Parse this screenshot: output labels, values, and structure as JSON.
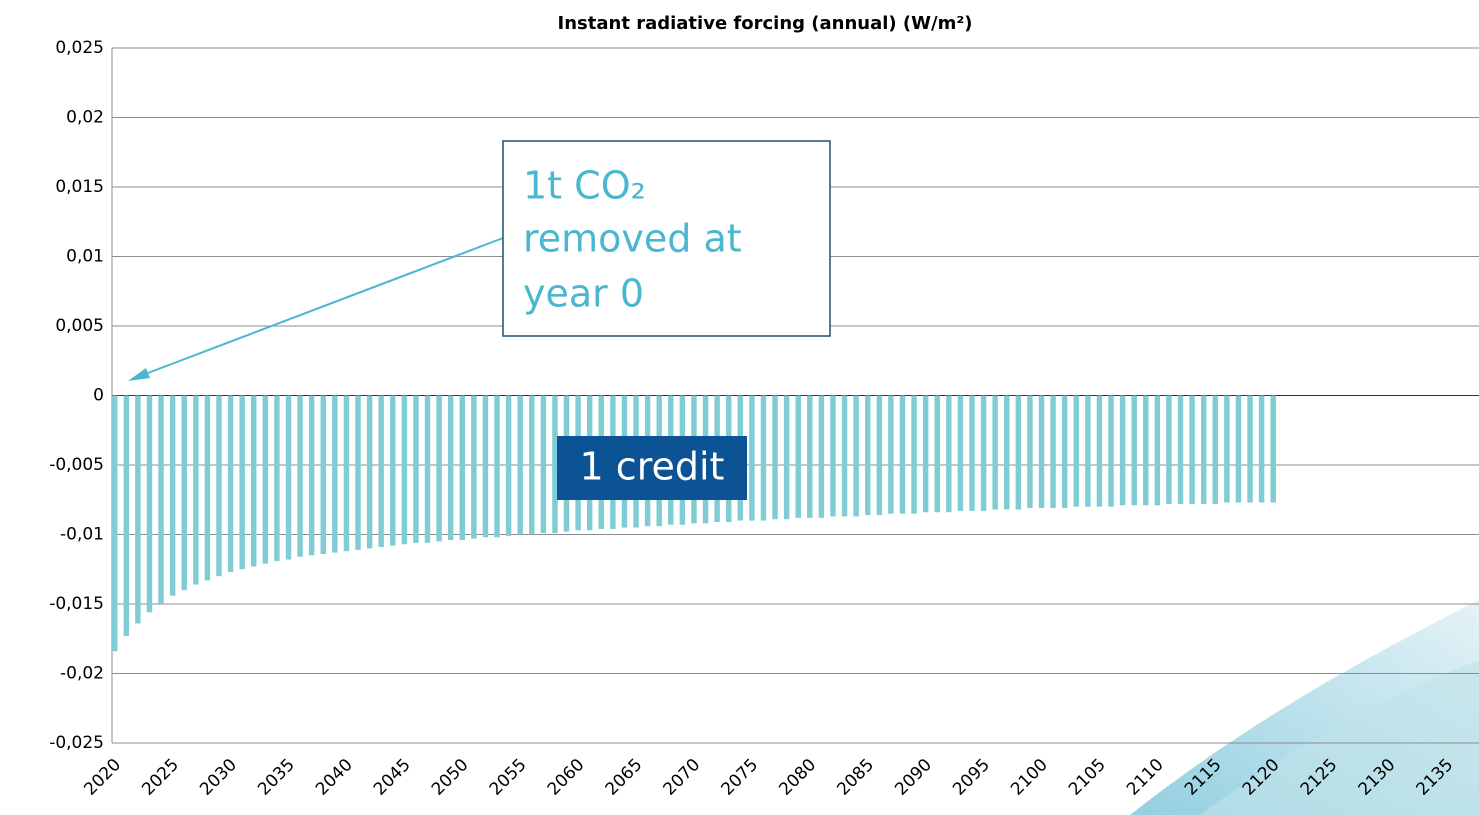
{
  "chart_data": {
    "type": "bar",
    "title": "Instant radiative forcing (annual) (W/m²)",
    "x": [
      2020,
      2021,
      2022,
      2023,
      2024,
      2025,
      2026,
      2027,
      2028,
      2029,
      2030,
      2031,
      2032,
      2033,
      2034,
      2035,
      2036,
      2037,
      2038,
      2039,
      2040,
      2041,
      2042,
      2043,
      2044,
      2045,
      2046,
      2047,
      2048,
      2049,
      2050,
      2051,
      2052,
      2053,
      2054,
      2055,
      2056,
      2057,
      2058,
      2059,
      2060,
      2061,
      2062,
      2063,
      2064,
      2065,
      2066,
      2067,
      2068,
      2069,
      2070,
      2071,
      2072,
      2073,
      2074,
      2075,
      2076,
      2077,
      2078,
      2079,
      2080,
      2081,
      2082,
      2083,
      2084,
      2085,
      2086,
      2087,
      2088,
      2089,
      2090,
      2091,
      2092,
      2093,
      2094,
      2095,
      2096,
      2097,
      2098,
      2099,
      2100,
      2101,
      2102,
      2103,
      2104,
      2105,
      2106,
      2107,
      2108,
      2109,
      2110,
      2111,
      2112,
      2113,
      2114,
      2115,
      2116,
      2117,
      2118,
      2119,
      2120
    ],
    "values": [
      -0.0184,
      -0.0173,
      -0.0164,
      -0.0156,
      -0.015,
      -0.0144,
      -0.014,
      -0.0136,
      -0.0133,
      -0.013,
      -0.0127,
      -0.0125,
      -0.0123,
      -0.0121,
      -0.0119,
      -0.0118,
      -0.0116,
      -0.0115,
      -0.0114,
      -0.0113,
      -0.0112,
      -0.0111,
      -0.011,
      -0.0109,
      -0.0108,
      -0.0107,
      -0.0106,
      -0.0106,
      -0.0105,
      -0.0104,
      -0.0104,
      -0.0103,
      -0.0102,
      -0.0102,
      -0.0101,
      -0.01,
      -0.01,
      -0.0099,
      -0.0099,
      -0.0098,
      -0.0097,
      -0.0097,
      -0.0096,
      -0.0096,
      -0.0095,
      -0.0095,
      -0.0094,
      -0.0094,
      -0.0093,
      -0.0093,
      -0.0092,
      -0.0092,
      -0.0091,
      -0.0091,
      -0.009,
      -0.009,
      -0.009,
      -0.0089,
      -0.0089,
      -0.0088,
      -0.0088,
      -0.0088,
      -0.0087,
      -0.0087,
      -0.0087,
      -0.0086,
      -0.0086,
      -0.0085,
      -0.0085,
      -0.0085,
      -0.0084,
      -0.0084,
      -0.0084,
      -0.0083,
      -0.0083,
      -0.0083,
      -0.0082,
      -0.0082,
      -0.0082,
      -0.0081,
      -0.0081,
      -0.0081,
      -0.0081,
      -0.008,
      -0.008,
      -0.008,
      -0.008,
      -0.0079,
      -0.0079,
      -0.0079,
      -0.0079,
      -0.0078,
      -0.0078,
      -0.0078,
      -0.0078,
      -0.0078,
      -0.0077,
      -0.0077,
      -0.0077,
      -0.0077,
      -0.0077
    ],
    "color": "#80ccd5",
    "xlim": [
      2020,
      2138
    ],
    "xticks": [
      2020,
      2025,
      2030,
      2035,
      2040,
      2045,
      2050,
      2055,
      2060,
      2065,
      2070,
      2075,
      2080,
      2085,
      2090,
      2095,
      2100,
      2105,
      2110,
      2115,
      2120,
      2125,
      2130,
      2135
    ],
    "ylim": [
      -0.025,
      0.025
    ],
    "yticks": [
      {
        "value": -0.025,
        "label": "-0,025"
      },
      {
        "value": -0.02,
        "label": "-0,02"
      },
      {
        "value": -0.015,
        "label": "-0,015"
      },
      {
        "value": -0.01,
        "label": "-0,01"
      },
      {
        "value": -0.005,
        "label": "-0,005"
      },
      0,
      {
        "value": 0.005,
        "label": "0,005"
      },
      {
        "value": 0.01,
        "label": "0,01"
      },
      {
        "value": 0.015,
        "label": "0,015"
      },
      {
        "value": 0.02,
        "label": "0,02"
      },
      {
        "value": 0.025,
        "label": "0,025"
      }
    ],
    "grid": true,
    "annotations": {
      "callout": [
        "1t CO₂",
        "removed at",
        "year 0"
      ],
      "label": "1 credit"
    }
  }
}
